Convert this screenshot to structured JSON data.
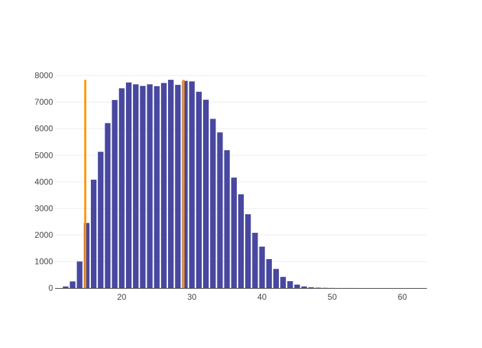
{
  "chart_data": {
    "type": "bar",
    "title": "",
    "xlabel": "",
    "ylabel": "",
    "xlim": [
      10.5,
      63.5
    ],
    "ylim": [
      0,
      8250
    ],
    "xticks": [
      20,
      30,
      40,
      50,
      60
    ],
    "yticks": [
      0,
      1000,
      2000,
      3000,
      4000,
      5000,
      6000,
      7000,
      8000
    ],
    "grid": {
      "x": false,
      "y": true
    },
    "legend": "none",
    "colors": {
      "bars": "#4848a0",
      "vlines": "#ff9400",
      "grid": "#eeeeee",
      "axis": "#444444"
    },
    "x": [
      12,
      13,
      14,
      15,
      16,
      17,
      18,
      19,
      20,
      21,
      22,
      23,
      24,
      25,
      26,
      27,
      28,
      29,
      30,
      31,
      32,
      33,
      34,
      35,
      36,
      37,
      38,
      39,
      40,
      41,
      42,
      43,
      44,
      45,
      46,
      47,
      48,
      49,
      50,
      51,
      52,
      53,
      54,
      55,
      56,
      57,
      58,
      59,
      60,
      61,
      62
    ],
    "values": [
      60,
      250,
      1000,
      2450,
      4080,
      5130,
      6210,
      7080,
      7520,
      7740,
      7670,
      7610,
      7670,
      7600,
      7720,
      7840,
      7650,
      7800,
      7780,
      7390,
      7090,
      6370,
      5860,
      5190,
      4160,
      3530,
      2780,
      2080,
      1560,
      1090,
      720,
      420,
      260,
      130,
      60,
      30,
      15,
      8,
      4,
      2,
      1,
      1,
      0,
      0,
      0,
      0,
      0,
      0,
      0,
      0,
      0
    ],
    "vertical_lines": [
      {
        "x": 14.8,
        "y_top": 7840
      },
      {
        "x": 28.8,
        "y_top": 7840
      }
    ]
  }
}
